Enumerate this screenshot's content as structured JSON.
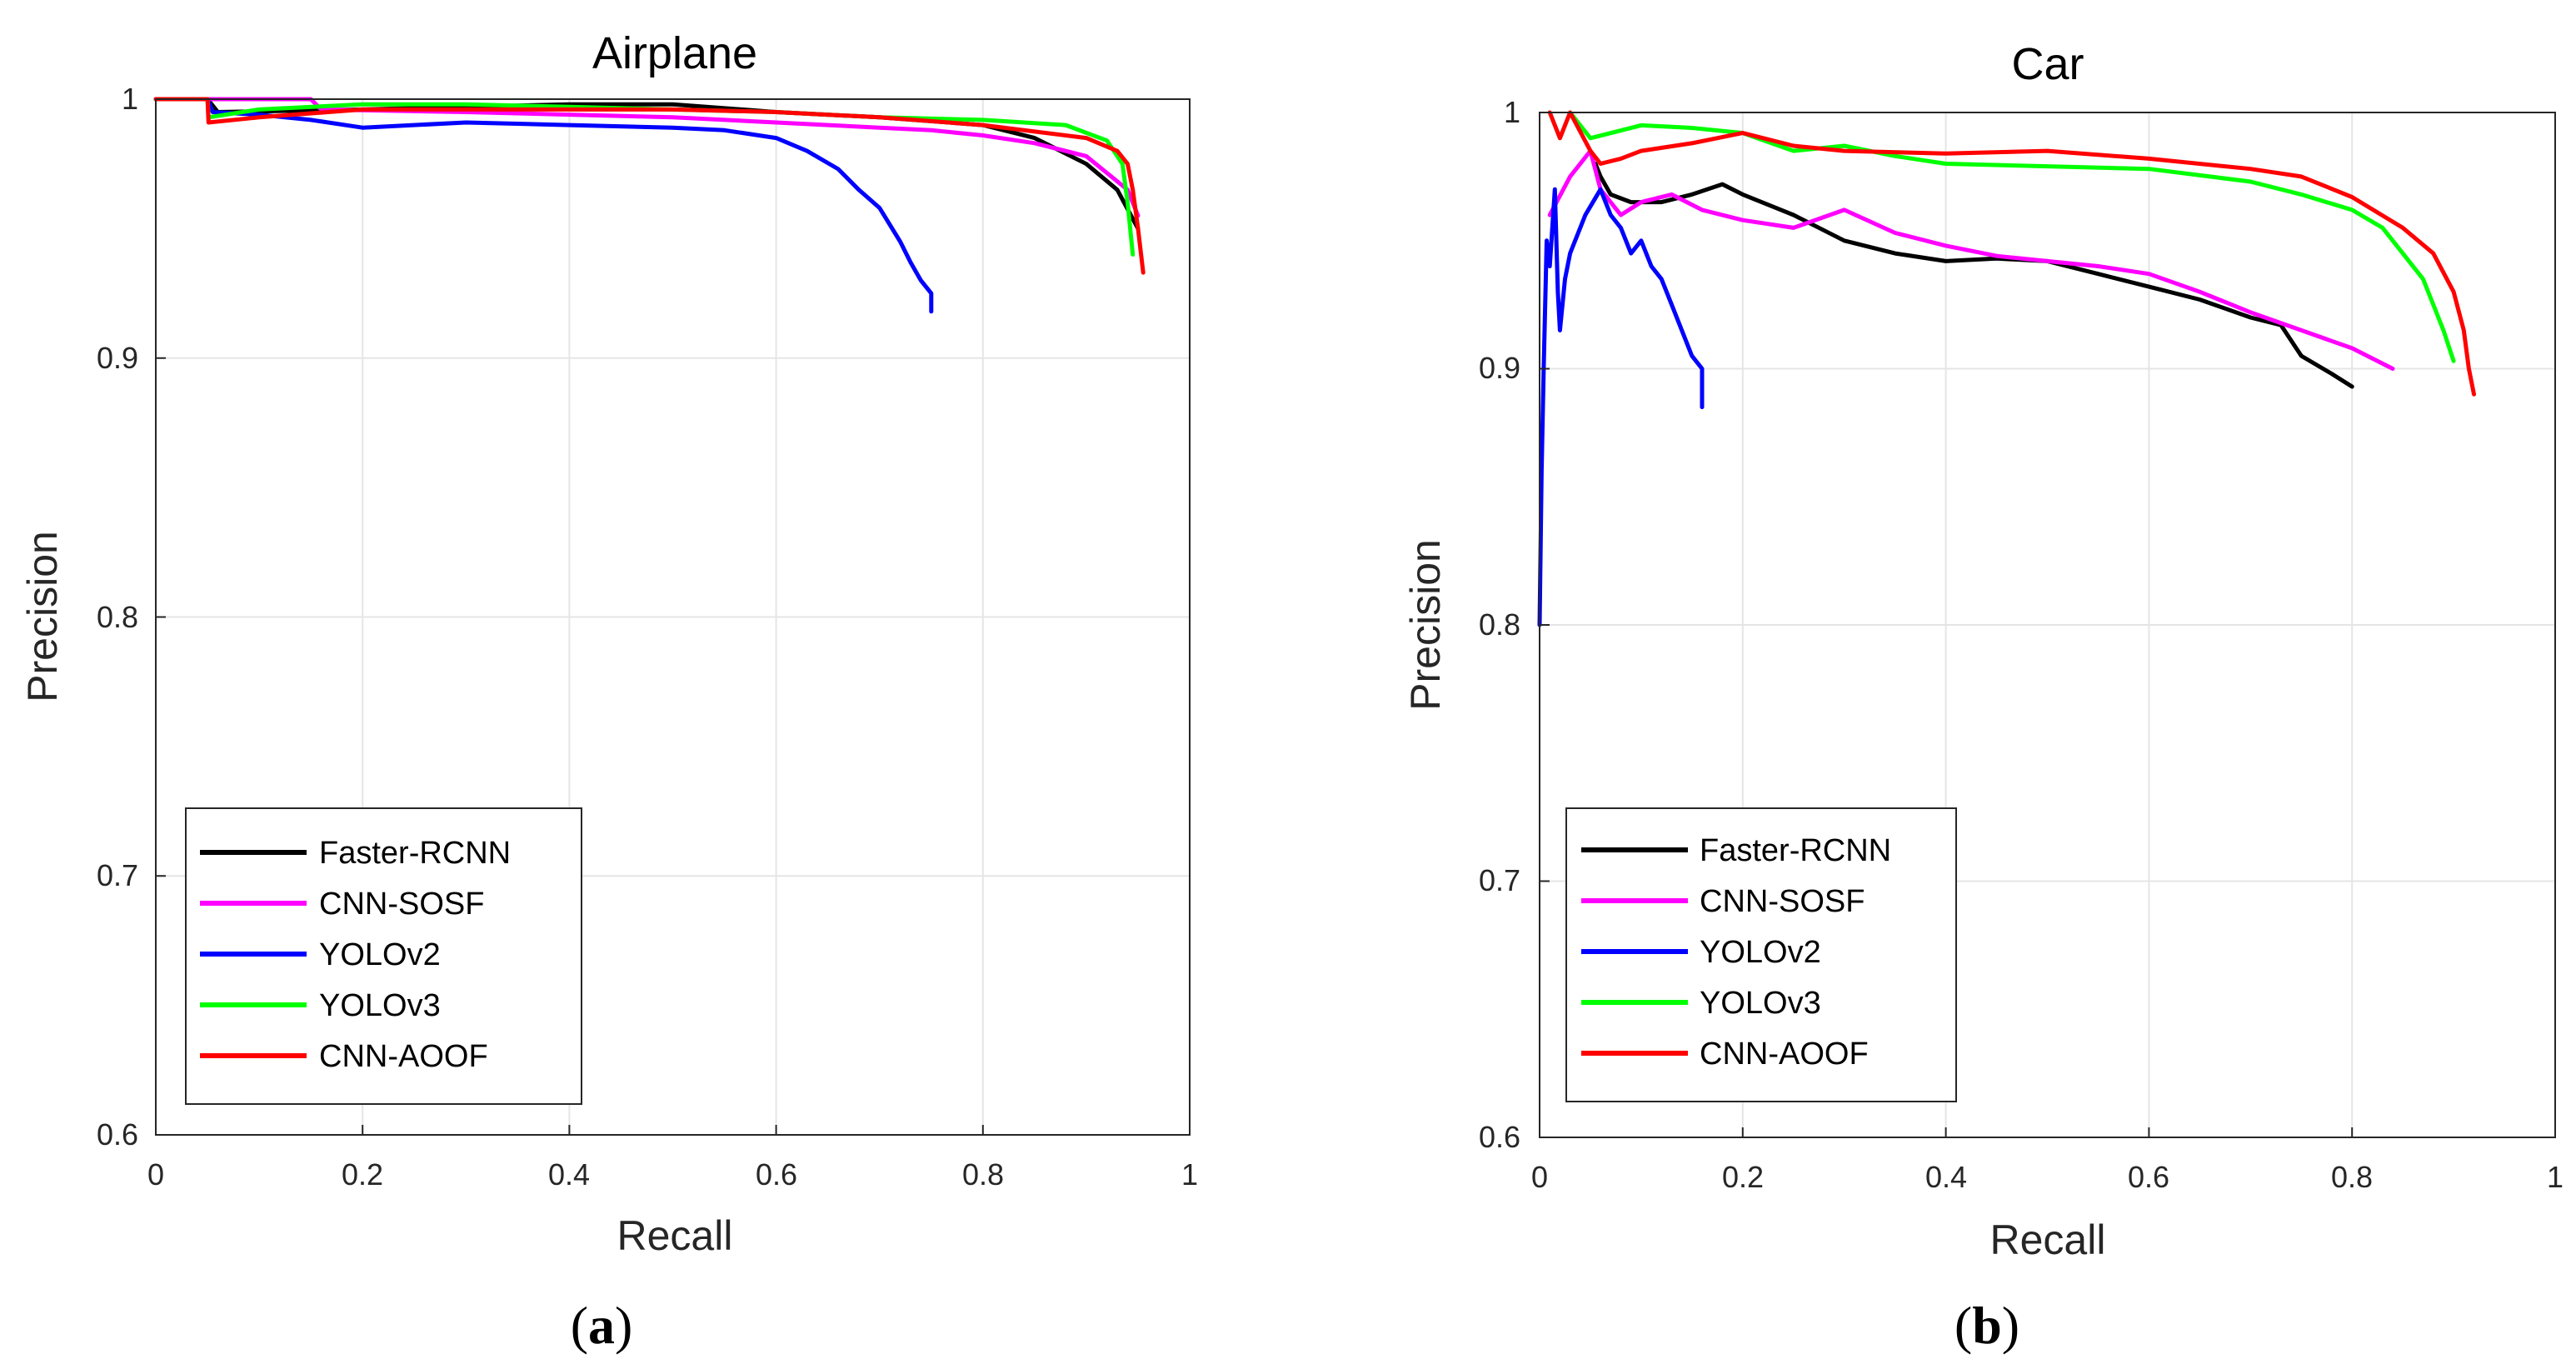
{
  "figure": {
    "panel_labels": [
      {
        "open": "(",
        "letter": "a",
        "close": ")"
      },
      {
        "open": "(",
        "letter": "b",
        "close": ")"
      }
    ]
  },
  "colors": {
    "Faster-RCNN": "#000000",
    "CNN-SOSF": "#ff00ff",
    "YOLOv2": "#0000ff",
    "YOLOv3": "#00ff00",
    "CNN-AOOF": "#ff0000",
    "grid": "#e5e5e5",
    "axis": "#262626"
  },
  "chart_data": [
    {
      "type": "line",
      "title": "Airplane",
      "xlabel": "Recall",
      "ylabel": "Precision",
      "xlim": [
        0,
        1
      ],
      "ylim": [
        0.6,
        1
      ],
      "xticks": [
        0,
        0.2,
        0.4,
        0.6,
        0.8,
        1
      ],
      "xtick_labels": [
        "0",
        "0.2",
        "0.4",
        "0.6",
        "0.8",
        "1"
      ],
      "yticks": [
        0.6,
        0.7,
        0.8,
        0.9,
        1
      ],
      "ytick_labels": [
        "0.6",
        "0.7",
        "0.8",
        "0.9",
        "1"
      ],
      "grid": true,
      "legend_position": "bottom-left",
      "series": [
        {
          "name": "Faster-RCNN",
          "x": [
            0,
            0.05,
            0.06,
            0.2,
            0.3,
            0.4,
            0.5,
            0.6,
            0.7,
            0.8,
            0.85,
            0.9,
            0.93,
            0.95
          ],
          "y": [
            1,
            1,
            0.995,
            0.996,
            0.997,
            0.998,
            0.998,
            0.995,
            0.993,
            0.99,
            0.985,
            0.975,
            0.965,
            0.95
          ]
        },
        {
          "name": "CNN-SOSF",
          "x": [
            0,
            0.15,
            0.16,
            0.3,
            0.4,
            0.5,
            0.6,
            0.7,
            0.75,
            0.8,
            0.85,
            0.9,
            0.94,
            0.95
          ],
          "y": [
            1,
            1,
            0.996,
            0.995,
            0.994,
            0.993,
            0.991,
            0.989,
            0.988,
            0.986,
            0.983,
            0.978,
            0.965,
            0.955
          ]
        },
        {
          "name": "YOLOv2",
          "x": [
            0,
            0.05,
            0.055,
            0.1,
            0.15,
            0.2,
            0.3,
            0.4,
            0.5,
            0.55,
            0.6,
            0.63,
            0.66,
            0.68,
            0.7,
            0.72,
            0.73,
            0.74,
            0.75,
            0.75
          ],
          "y": [
            1,
            1,
            0.995,
            0.994,
            0.992,
            0.989,
            0.991,
            0.99,
            0.989,
            0.988,
            0.985,
            0.98,
            0.973,
            0.965,
            0.958,
            0.945,
            0.937,
            0.93,
            0.925,
            0.918
          ]
        },
        {
          "name": "YOLOv3",
          "x": [
            0,
            0.05,
            0.051,
            0.1,
            0.2,
            0.3,
            0.4,
            0.5,
            0.6,
            0.7,
            0.8,
            0.88,
            0.92,
            0.935,
            0.94,
            0.945
          ],
          "y": [
            1,
            1,
            0.993,
            0.996,
            0.998,
            0.998,
            0.997,
            0.996,
            0.995,
            0.993,
            0.992,
            0.99,
            0.984,
            0.975,
            0.96,
            0.94
          ]
        },
        {
          "name": "CNN-AOOF",
          "x": [
            0,
            0.05,
            0.051,
            0.1,
            0.2,
            0.3,
            0.4,
            0.5,
            0.6,
            0.7,
            0.8,
            0.9,
            0.93,
            0.94,
            0.945,
            0.95,
            0.955
          ],
          "y": [
            1,
            1,
            0.991,
            0.993,
            0.996,
            0.996,
            0.996,
            0.996,
            0.995,
            0.993,
            0.99,
            0.985,
            0.98,
            0.975,
            0.965,
            0.95,
            0.933
          ]
        }
      ]
    },
    {
      "type": "line",
      "title": "Car",
      "xlabel": "Recall",
      "ylabel": "Precision",
      "xlim": [
        0,
        1
      ],
      "ylim": [
        0.6,
        1
      ],
      "xticks": [
        0,
        0.2,
        0.4,
        0.6,
        0.8,
        1
      ],
      "xtick_labels": [
        "0",
        "0.2",
        "0.4",
        "0.6",
        "0.8",
        "1"
      ],
      "yticks": [
        0.6,
        0.7,
        0.8,
        0.9,
        1
      ],
      "ytick_labels": [
        "0.6",
        "0.7",
        "0.8",
        "0.9",
        "1"
      ],
      "grid": true,
      "legend_position": "bottom-left",
      "series": [
        {
          "name": "Faster-RCNN",
          "x": [
            0.055,
            0.06,
            0.07,
            0.09,
            0.12,
            0.15,
            0.18,
            0.2,
            0.25,
            0.3,
            0.35,
            0.4,
            0.45,
            0.5,
            0.55,
            0.6,
            0.65,
            0.7,
            0.73,
            0.75,
            0.78,
            0.8
          ],
          "y": [
            0.98,
            0.975,
            0.968,
            0.965,
            0.965,
            0.968,
            0.972,
            0.968,
            0.96,
            0.95,
            0.945,
            0.942,
            0.943,
            0.942,
            0.937,
            0.932,
            0.927,
            0.92,
            0.917,
            0.905,
            0.898,
            0.893
          ]
        },
        {
          "name": "CNN-SOSF",
          "x": [
            0.01,
            0.03,
            0.05,
            0.06,
            0.08,
            0.1,
            0.13,
            0.16,
            0.2,
            0.25,
            0.3,
            0.35,
            0.4,
            0.45,
            0.5,
            0.55,
            0.6,
            0.65,
            0.7,
            0.75,
            0.8,
            0.84
          ],
          "y": [
            0.96,
            0.975,
            0.985,
            0.97,
            0.96,
            0.965,
            0.968,
            0.962,
            0.958,
            0.955,
            0.962,
            0.953,
            0.948,
            0.944,
            0.942,
            0.94,
            0.937,
            0.93,
            0.922,
            0.915,
            0.908,
            0.9
          ]
        },
        {
          "name": "YOLOv2",
          "x": [
            0,
            0.002,
            0.004,
            0.007,
            0.01,
            0.015,
            0.018,
            0.02,
            0.025,
            0.03,
            0.045,
            0.06,
            0.07,
            0.08,
            0.09,
            0.1,
            0.11,
            0.12,
            0.13,
            0.14,
            0.15,
            0.16,
            0.16
          ],
          "y": [
            0.8,
            0.86,
            0.9,
            0.95,
            0.94,
            0.97,
            0.93,
            0.915,
            0.935,
            0.945,
            0.96,
            0.97,
            0.96,
            0.955,
            0.945,
            0.95,
            0.94,
            0.935,
            0.925,
            0.915,
            0.905,
            0.9,
            0.885
          ]
        },
        {
          "name": "YOLOv3",
          "x": [
            0.03,
            0.04,
            0.05,
            0.1,
            0.15,
            0.2,
            0.25,
            0.3,
            0.35,
            0.4,
            0.5,
            0.6,
            0.7,
            0.75,
            0.8,
            0.83,
            0.85,
            0.87,
            0.88,
            0.89,
            0.9
          ],
          "y": [
            1,
            0.995,
            0.99,
            0.995,
            0.994,
            0.992,
            0.985,
            0.987,
            0.983,
            0.98,
            0.979,
            0.978,
            0.973,
            0.968,
            0.962,
            0.955,
            0.945,
            0.935,
            0.925,
            0.915,
            0.903
          ]
        },
        {
          "name": "CNN-AOOF",
          "x": [
            0.01,
            0.02,
            0.03,
            0.05,
            0.06,
            0.08,
            0.1,
            0.15,
            0.2,
            0.25,
            0.3,
            0.4,
            0.5,
            0.6,
            0.7,
            0.75,
            0.8,
            0.85,
            0.88,
            0.9,
            0.91,
            0.915,
            0.92
          ],
          "y": [
            1,
            0.99,
            1,
            0.985,
            0.98,
            0.982,
            0.985,
            0.988,
            0.992,
            0.987,
            0.985,
            0.984,
            0.985,
            0.982,
            0.978,
            0.975,
            0.967,
            0.955,
            0.945,
            0.93,
            0.915,
            0.9,
            0.89
          ]
        }
      ]
    }
  ]
}
